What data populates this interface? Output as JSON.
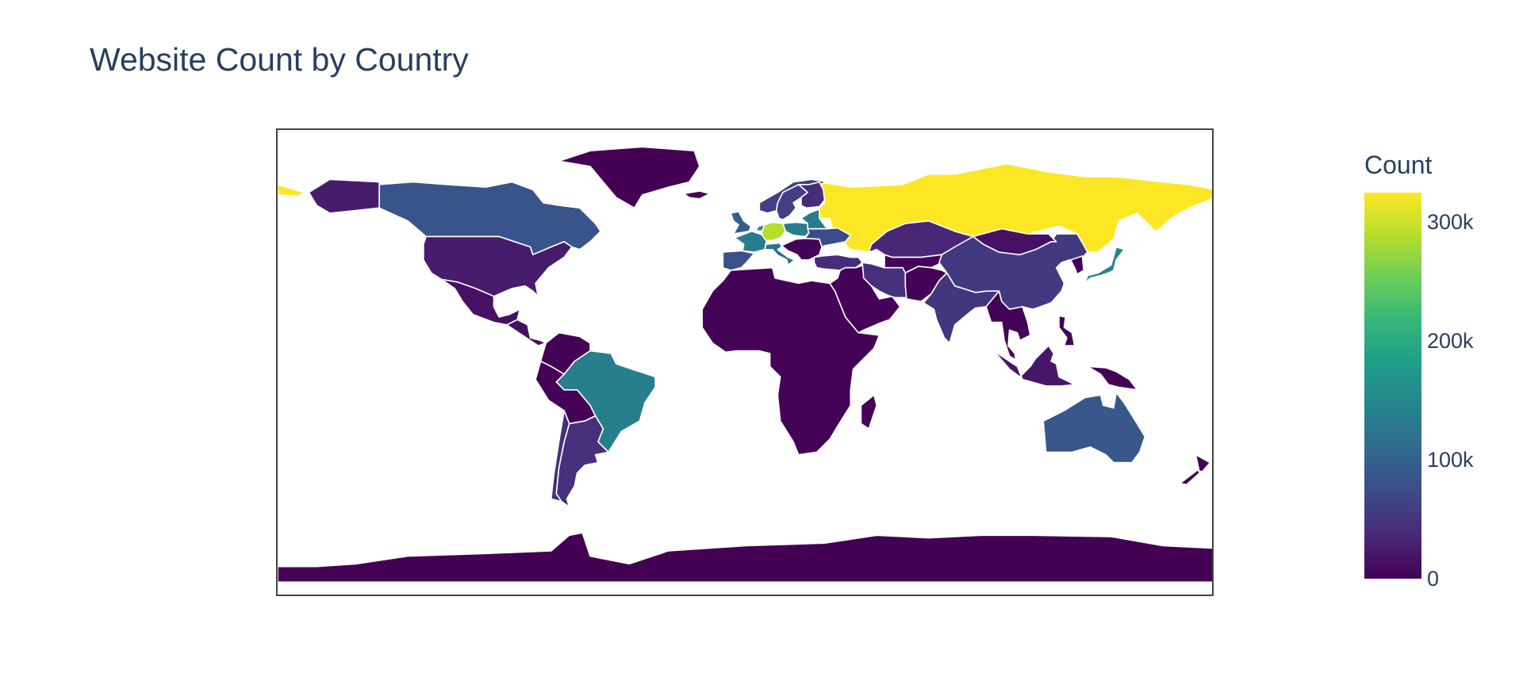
{
  "chart_data": {
    "type": "choropleth",
    "title": "Website Count by Country",
    "colorbar": {
      "title": "Count",
      "range": [
        0,
        325000
      ],
      "colorscale": "Viridis",
      "ticks": [
        {
          "value": 0,
          "label": "0"
        },
        {
          "value": 100000,
          "label": "100k"
        },
        {
          "value": 200000,
          "label": "200k"
        },
        {
          "value": 300000,
          "label": "300k"
        }
      ]
    },
    "regions": [
      {
        "name": "Russia",
        "value": 325000
      },
      {
        "name": "Germany",
        "value": 290000
      },
      {
        "name": "Brazil",
        "value": 140000
      },
      {
        "name": "France",
        "value": 135000
      },
      {
        "name": "Poland",
        "value": 135000
      },
      {
        "name": "Japan",
        "value": 150000
      },
      {
        "name": "Netherlands",
        "value": 160000
      },
      {
        "name": "Italy",
        "value": 125000
      },
      {
        "name": "United Kingdom",
        "value": 95000
      },
      {
        "name": "Canada",
        "value": 85000
      },
      {
        "name": "Australia",
        "value": 90000
      },
      {
        "name": "Spain",
        "value": 80000
      },
      {
        "name": "Ukraine",
        "value": 75000
      },
      {
        "name": "China",
        "value": 55000
      },
      {
        "name": "India",
        "value": 50000
      },
      {
        "name": "Argentina",
        "value": 45000
      },
      {
        "name": "Sweden",
        "value": 60000
      },
      {
        "name": "Finland",
        "value": 40000
      },
      {
        "name": "Iran",
        "value": 45000
      },
      {
        "name": "Turkey",
        "value": 40000
      },
      {
        "name": "Kazakhstan",
        "value": 35000
      },
      {
        "name": "Mongolia",
        "value": 15000
      },
      {
        "name": "United States",
        "value": 25000
      },
      {
        "name": "Mexico",
        "value": 15000
      },
      {
        "name": "Indonesia",
        "value": 20000
      },
      {
        "name": "Greenland",
        "value": 0
      },
      {
        "name": "Africa (others)",
        "value": 2000
      },
      {
        "name": "Antarctica",
        "value": 0
      }
    ]
  }
}
